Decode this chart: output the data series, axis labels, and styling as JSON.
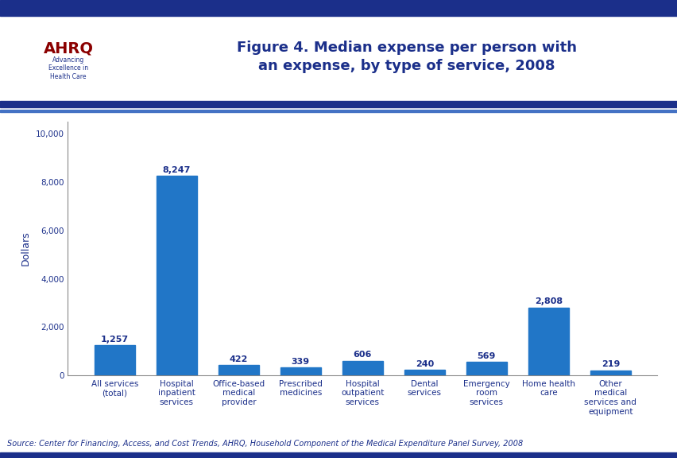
{
  "title": "Figure 4. Median expense per person with\nan expense, by type of service, 2008",
  "ylabel": "Dollars",
  "source": "Source: Center for Financing, Access, and Cost Trends, AHRQ, Household Component of the Medical Expenditure Panel Survey, 2008",
  "categories": [
    "All services\n(total)",
    "Hospital\ninpatient\nservices",
    "Office-based\nmedical\nprovider",
    "Prescribed\nmedicines",
    "Hospital\noutpatient\nservices",
    "Dental\nservices",
    "Emergency\nroom\nservices",
    "Home health\ncare",
    "Other\nmedical\nservices and\nequipment"
  ],
  "values": [
    1257,
    8247,
    422,
    339,
    606,
    240,
    569,
    2808,
    219
  ],
  "bar_color": "#2176C7",
  "ylim": [
    0,
    10500
  ],
  "yticks": [
    0,
    2000,
    4000,
    6000,
    8000,
    10000
  ],
  "title_color": "#1B2F8A",
  "label_color": "#1B2F8A",
  "axis_color": "#1B2F8A",
  "tick_color": "#1B2F8A",
  "source_color": "#1B2F8A",
  "title_fontsize": 13,
  "label_fontsize": 7.5,
  "value_fontsize": 8,
  "ylabel_fontsize": 9,
  "source_fontsize": 7,
  "border_color": "#1B2F8A",
  "background_color": "#FFFFFF",
  "header_bg": "#FFFFFF",
  "logo_bg": "#1B8FBF",
  "thick_line_color": "#1B2F8A",
  "thin_line_color": "#4472C4"
}
